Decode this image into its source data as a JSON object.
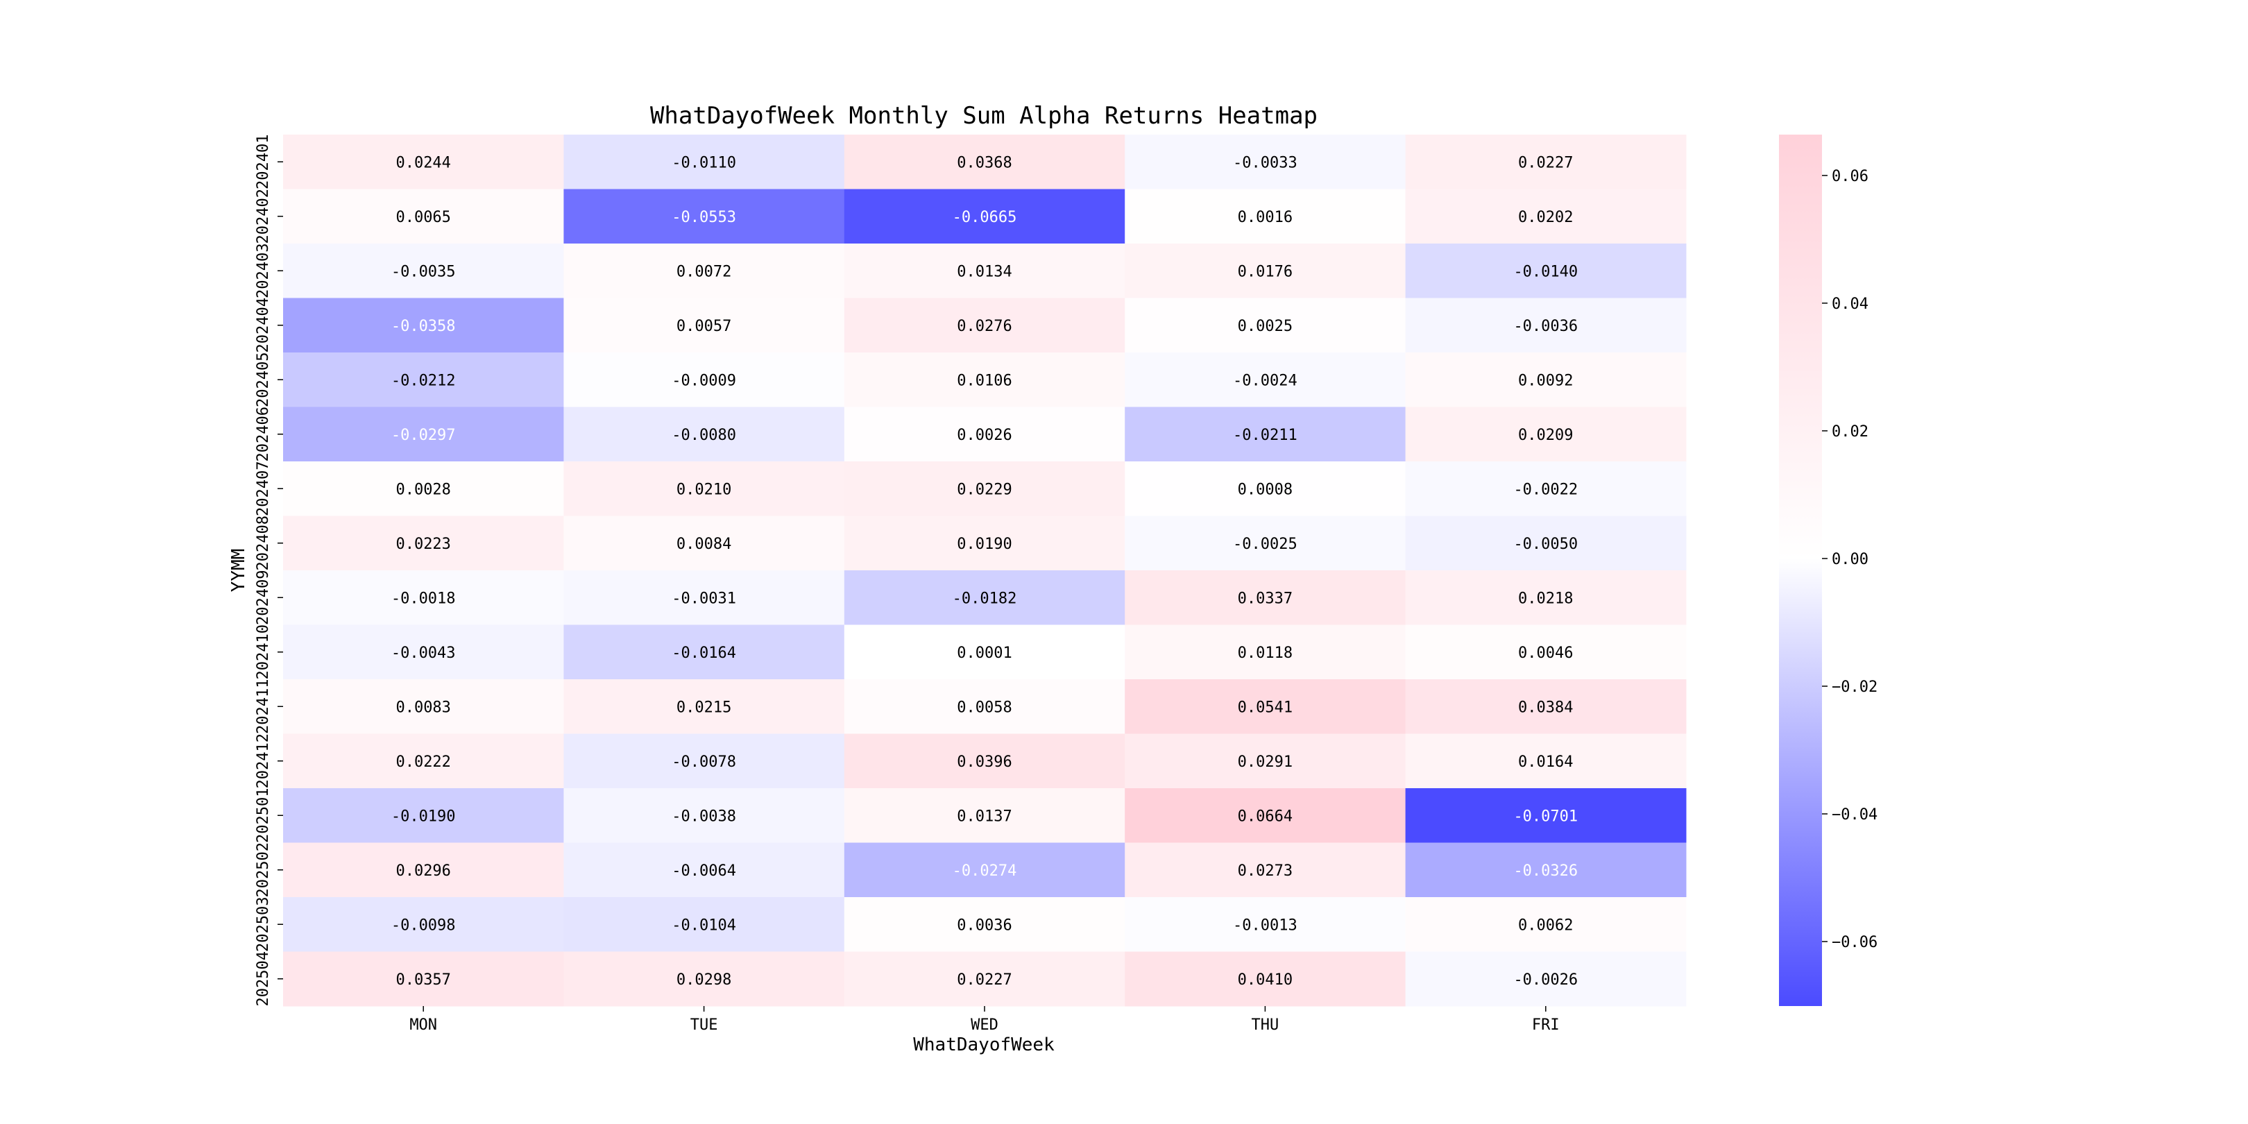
{
  "chart_data": {
    "type": "heatmap",
    "title": "WhatDayofWeek Monthly Sum Alpha Returns Heatmap",
    "xlabel": "WhatDayofWeek",
    "ylabel": "YYMM",
    "columns": [
      "MON",
      "TUE",
      "WED",
      "THU",
      "FRI"
    ],
    "rows": [
      "202401",
      "202402",
      "202403",
      "202404",
      "202405",
      "202406",
      "202407",
      "202408",
      "202409",
      "202410",
      "202411",
      "202412",
      "202501",
      "202502",
      "202503",
      "202504"
    ],
    "values": [
      [
        "0.0244",
        "-0.0110",
        "0.0368",
        "-0.0033",
        "0.0227"
      ],
      [
        "0.0065",
        "-0.0553",
        "-0.0665",
        "0.0016",
        "0.0202"
      ],
      [
        "-0.0035",
        "0.0072",
        "0.0134",
        "0.0176",
        "-0.0140"
      ],
      [
        "-0.0358",
        "0.0057",
        "0.0276",
        "0.0025",
        "-0.0036"
      ],
      [
        "-0.0212",
        "-0.0009",
        "0.0106",
        "-0.0024",
        "0.0092"
      ],
      [
        "-0.0297",
        "-0.0080",
        "0.0026",
        "-0.0211",
        "0.0209"
      ],
      [
        "0.0028",
        "0.0210",
        "0.0229",
        "0.0008",
        "-0.0022"
      ],
      [
        "0.0223",
        "0.0084",
        "0.0190",
        "-0.0025",
        "-0.0050"
      ],
      [
        "-0.0018",
        "-0.0031",
        "-0.0182",
        "0.0337",
        "0.0218"
      ],
      [
        "-0.0043",
        "-0.0164",
        "0.0001",
        "0.0118",
        "0.0046"
      ],
      [
        "0.0083",
        "0.0215",
        "0.0058",
        "0.0541",
        "0.0384"
      ],
      [
        "0.0222",
        "-0.0078",
        "0.0396",
        "0.0291",
        "0.0164"
      ],
      [
        "-0.0190",
        "-0.0038",
        "0.0137",
        "0.0664",
        "-0.0701"
      ],
      [
        "0.0296",
        "-0.0064",
        "-0.0274",
        "0.0273",
        "-0.0326"
      ],
      [
        "-0.0098",
        "-0.0104",
        "0.0036",
        "-0.0013",
        "0.0062"
      ],
      [
        "0.0357",
        "0.0298",
        "0.0227",
        "0.0410",
        "-0.0026"
      ]
    ],
    "colorbar": {
      "vmin": -0.0701,
      "vmax": 0.0664,
      "ticks": [
        "0.06",
        "0.04",
        "0.02",
        "0.00",
        "-0.02",
        "-0.04",
        "-0.06"
      ],
      "colors": {
        "negative": "#4b4bff",
        "zero": "#ffffff",
        "positive": "#ffd1da"
      }
    }
  }
}
